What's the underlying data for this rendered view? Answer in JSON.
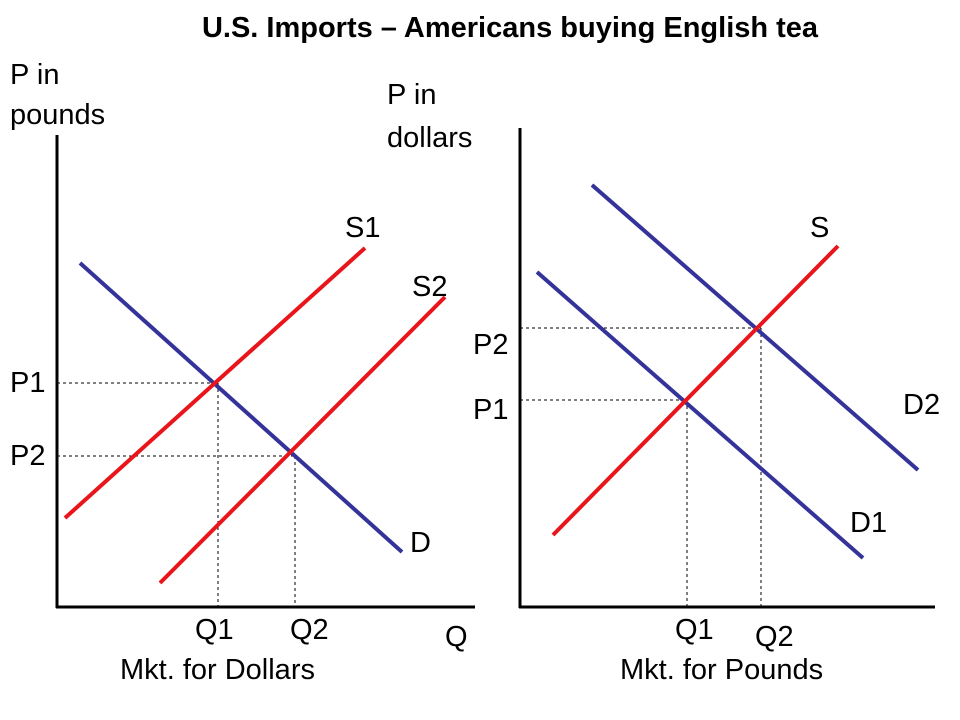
{
  "title": "U.S. Imports – Americans buying English tea",
  "left_panel": {
    "y_axis_label": [
      "P in",
      "pounds"
    ],
    "curves": {
      "supply_1": "S1",
      "supply_2": "S2",
      "demand": "D"
    },
    "prices": [
      "P1",
      "P2"
    ],
    "quantities": [
      "Q1",
      "Q2"
    ],
    "x_axis_label": "Q",
    "caption": "Mkt. for Dollars"
  },
  "right_panel": {
    "y_axis_label": [
      "P in",
      "dollars"
    ],
    "curves": {
      "supply": "S",
      "demand_1": "D1",
      "demand_2": "D2"
    },
    "prices": [
      "P2",
      "P1"
    ],
    "quantities": [
      "Q1",
      "Q2"
    ],
    "caption": "Mkt. for Pounds"
  }
}
